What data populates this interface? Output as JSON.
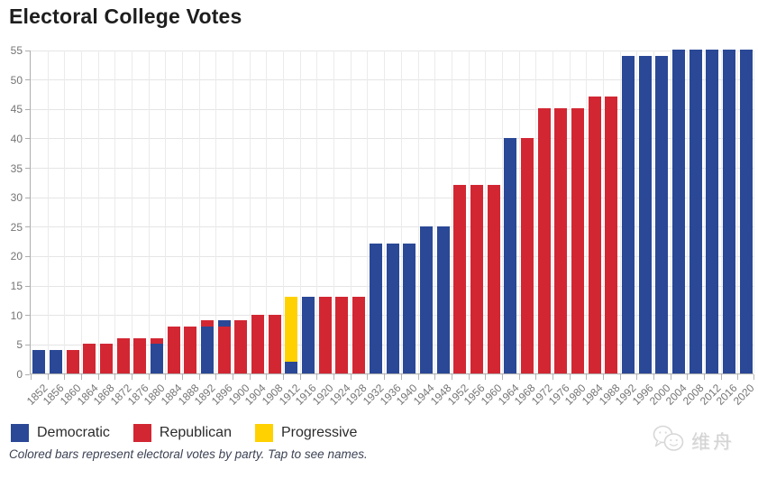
{
  "title": "Electoral College Votes",
  "legend": {
    "items": [
      {
        "party": "Democratic",
        "color": "#2a4896"
      },
      {
        "party": "Republican",
        "color": "#d22733"
      },
      {
        "party": "Progressive",
        "color": "#ffd100"
      }
    ]
  },
  "footnote": "Colored bars represent electoral votes by party. Tap to see names.",
  "watermark": {
    "icon": "wechat-icon",
    "text": "维舟"
  },
  "chart_data": {
    "type": "bar",
    "stacked": true,
    "title": "Electoral College Votes",
    "xlabel": "",
    "ylabel": "",
    "ylim": [
      0,
      55
    ],
    "yticks": [
      0,
      5,
      10,
      15,
      20,
      25,
      30,
      35,
      40,
      45,
      50,
      55
    ],
    "grid": true,
    "legend_position": "bottom",
    "party_colors": {
      "Democratic": "#2a4896",
      "Republican": "#d22733",
      "Progressive": "#ffd100"
    },
    "bars": [
      {
        "year": "1852",
        "segments": [
          {
            "party": "Democratic",
            "votes": 4
          }
        ]
      },
      {
        "year": "1856",
        "segments": [
          {
            "party": "Democratic",
            "votes": 4
          }
        ]
      },
      {
        "year": "1860",
        "segments": [
          {
            "party": "Republican",
            "votes": 4
          }
        ]
      },
      {
        "year": "1864",
        "segments": [
          {
            "party": "Republican",
            "votes": 5
          }
        ]
      },
      {
        "year": "1868",
        "segments": [
          {
            "party": "Republican",
            "votes": 5
          }
        ]
      },
      {
        "year": "1872",
        "segments": [
          {
            "party": "Republican",
            "votes": 6
          }
        ]
      },
      {
        "year": "1876",
        "segments": [
          {
            "party": "Republican",
            "votes": 6
          }
        ]
      },
      {
        "year": "1880",
        "segments": [
          {
            "party": "Democratic",
            "votes": 5
          },
          {
            "party": "Republican",
            "votes": 1
          }
        ]
      },
      {
        "year": "1884",
        "segments": [
          {
            "party": "Republican",
            "votes": 8
          }
        ]
      },
      {
        "year": "1888",
        "segments": [
          {
            "party": "Republican",
            "votes": 8
          }
        ]
      },
      {
        "year": "1892",
        "segments": [
          {
            "party": "Democratic",
            "votes": 8
          },
          {
            "party": "Republican",
            "votes": 1
          }
        ]
      },
      {
        "year": "1896",
        "segments": [
          {
            "party": "Republican",
            "votes": 8
          },
          {
            "party": "Democratic",
            "votes": 1
          }
        ]
      },
      {
        "year": "1900",
        "segments": [
          {
            "party": "Republican",
            "votes": 9
          }
        ]
      },
      {
        "year": "1904",
        "segments": [
          {
            "party": "Republican",
            "votes": 10
          }
        ]
      },
      {
        "year": "1908",
        "segments": [
          {
            "party": "Republican",
            "votes": 10
          }
        ]
      },
      {
        "year": "1912",
        "segments": [
          {
            "party": "Democratic",
            "votes": 2
          },
          {
            "party": "Progressive",
            "votes": 11
          }
        ]
      },
      {
        "year": "1916",
        "segments": [
          {
            "party": "Democratic",
            "votes": 13
          }
        ]
      },
      {
        "year": "1920",
        "segments": [
          {
            "party": "Republican",
            "votes": 13
          }
        ]
      },
      {
        "year": "1924",
        "segments": [
          {
            "party": "Republican",
            "votes": 13
          }
        ]
      },
      {
        "year": "1928",
        "segments": [
          {
            "party": "Republican",
            "votes": 13
          }
        ]
      },
      {
        "year": "1932",
        "segments": [
          {
            "party": "Democratic",
            "votes": 22
          }
        ]
      },
      {
        "year": "1936",
        "segments": [
          {
            "party": "Democratic",
            "votes": 22
          }
        ]
      },
      {
        "year": "1940",
        "segments": [
          {
            "party": "Democratic",
            "votes": 22
          }
        ]
      },
      {
        "year": "1944",
        "segments": [
          {
            "party": "Democratic",
            "votes": 25
          }
        ]
      },
      {
        "year": "1948",
        "segments": [
          {
            "party": "Democratic",
            "votes": 25
          }
        ]
      },
      {
        "year": "1952",
        "segments": [
          {
            "party": "Republican",
            "votes": 32
          }
        ]
      },
      {
        "year": "1956",
        "segments": [
          {
            "party": "Republican",
            "votes": 32
          }
        ]
      },
      {
        "year": "1960",
        "segments": [
          {
            "party": "Republican",
            "votes": 32
          }
        ]
      },
      {
        "year": "1964",
        "segments": [
          {
            "party": "Democratic",
            "votes": 40
          }
        ]
      },
      {
        "year": "1968",
        "segments": [
          {
            "party": "Republican",
            "votes": 40
          }
        ]
      },
      {
        "year": "1972",
        "segments": [
          {
            "party": "Republican",
            "votes": 45
          }
        ]
      },
      {
        "year": "1976",
        "segments": [
          {
            "party": "Republican",
            "votes": 45
          }
        ]
      },
      {
        "year": "1980",
        "segments": [
          {
            "party": "Republican",
            "votes": 45
          }
        ]
      },
      {
        "year": "1984",
        "segments": [
          {
            "party": "Republican",
            "votes": 47
          }
        ]
      },
      {
        "year": "1988",
        "segments": [
          {
            "party": "Republican",
            "votes": 47
          }
        ]
      },
      {
        "year": "1992",
        "segments": [
          {
            "party": "Democratic",
            "votes": 54
          }
        ]
      },
      {
        "year": "1996",
        "segments": [
          {
            "party": "Democratic",
            "votes": 54
          }
        ]
      },
      {
        "year": "2000",
        "segments": [
          {
            "party": "Democratic",
            "votes": 54
          }
        ]
      },
      {
        "year": "2004",
        "segments": [
          {
            "party": "Democratic",
            "votes": 55
          }
        ]
      },
      {
        "year": "2008",
        "segments": [
          {
            "party": "Democratic",
            "votes": 55
          }
        ]
      },
      {
        "year": "2012",
        "segments": [
          {
            "party": "Democratic",
            "votes": 55
          }
        ]
      },
      {
        "year": "2016",
        "segments": [
          {
            "party": "Democratic",
            "votes": 55
          }
        ]
      },
      {
        "year": "2020",
        "segments": [
          {
            "party": "Democratic",
            "votes": 55
          }
        ]
      }
    ]
  }
}
